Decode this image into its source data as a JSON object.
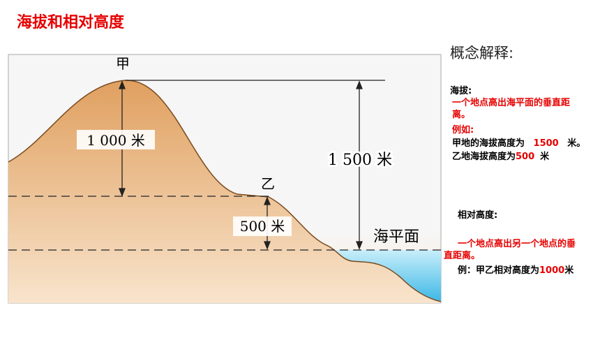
{
  "header": {
    "title": "海拔和相对高度"
  },
  "diagram": {
    "peak_label": "甲",
    "peak_relative": "1 000 米",
    "saddle_label": "乙",
    "peak_altitude": "1 500 米",
    "saddle_relative": "500 米",
    "sea_level": "海平面"
  },
  "notes": {
    "heading": "概念解释:",
    "altitude": {
      "term": "海拔:",
      "definition": "一个地点高出海平面的垂直距离。",
      "example_intro": "例如:",
      "line1": {
        "text": "甲地的海拔高度为",
        "value": "1500",
        "unit": "米。"
      },
      "line2": {
        "text": "乙地海拔高度为",
        "value": "500",
        "unit": "米"
      }
    },
    "relative": {
      "term": "相对高度:",
      "definition": "一个地点高出另一个地点的垂直距离。",
      "example": {
        "text": "例：甲乙相对高度为",
        "value": "1000",
        "unit": "米"
      }
    }
  }
}
